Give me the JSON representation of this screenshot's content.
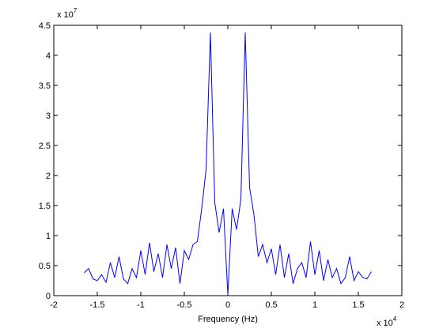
{
  "chart_data": {
    "type": "line",
    "xlabel": "Frequency (Hz)",
    "x_multiplier": {
      "base": "x 10",
      "exponent": "4"
    },
    "y_multiplier": {
      "base": "x 10",
      "exponent": "7"
    },
    "x": [
      -1.65,
      -1.6,
      -1.55,
      -1.5,
      -1.45,
      -1.4,
      -1.35,
      -1.3,
      -1.25,
      -1.2,
      -1.15,
      -1.1,
      -1.05,
      -1,
      -0.95,
      -0.9,
      -0.85,
      -0.8,
      -0.75,
      -0.7,
      -0.65,
      -0.6,
      -0.55,
      -0.5,
      -0.45,
      -0.4,
      -0.35,
      -0.3,
      -0.25,
      -0.2,
      -0.15,
      -0.1,
      -0.05,
      0,
      0.05,
      0.1,
      0.15,
      0.2,
      0.25,
      0.3,
      0.35,
      0.4,
      0.45,
      0.5,
      0.55,
      0.6,
      0.65,
      0.7,
      0.75,
      0.8,
      0.85,
      0.9,
      0.95,
      1,
      1.05,
      1.1,
      1.15,
      1.2,
      1.25,
      1.3,
      1.35,
      1.4,
      1.45,
      1.5,
      1.55,
      1.6,
      1.65
    ],
    "series": [
      {
        "color": "#0000ff",
        "values": [
          0.38,
          0.45,
          0.28,
          0.25,
          0.35,
          0.22,
          0.55,
          0.3,
          0.65,
          0.28,
          0.2,
          0.45,
          0.3,
          0.75,
          0.35,
          0.88,
          0.4,
          0.7,
          0.3,
          0.85,
          0.45,
          0.8,
          0.2,
          0.75,
          0.6,
          0.85,
          0.9,
          1.45,
          2.1,
          4.38,
          1.55,
          1.05,
          1.45,
          0.02,
          1.45,
          1.1,
          1.6,
          4.38,
          1.8,
          1.35,
          0.65,
          0.85,
          0.55,
          0.78,
          0.35,
          0.85,
          0.3,
          0.7,
          0.2,
          0.45,
          0.55,
          0.3,
          0.9,
          0.35,
          0.75,
          0.25,
          0.6,
          0.3,
          0.45,
          0.2,
          0.3,
          0.65,
          0.25,
          0.4,
          0.3,
          0.28,
          0.4
        ]
      }
    ],
    "xlim": [
      -2,
      2
    ],
    "xticks": [
      -2,
      -1.5,
      -1,
      -0.5,
      0,
      0.5,
      1,
      1.5,
      2
    ],
    "ylim": [
      0,
      4.5
    ],
    "yticks": [
      0,
      0.5,
      1,
      1.5,
      2,
      2.5,
      3,
      3.5,
      4,
      4.5
    ]
  }
}
